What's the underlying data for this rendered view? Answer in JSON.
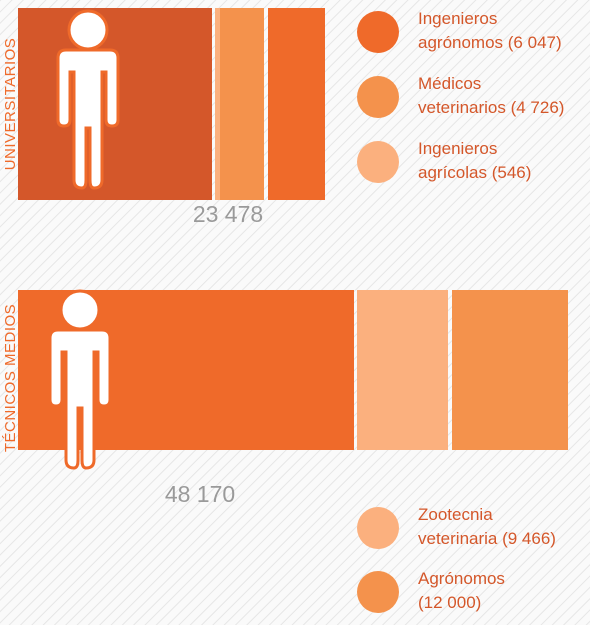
{
  "universitarios": {
    "label": "UNIVERSITARIOS",
    "total": "23 478",
    "legend": [
      [
        "Ingenieros",
        "agrónomos (6 047)"
      ],
      [
        "Médicos",
        "veterinarios (4 726)"
      ],
      [
        "Ingenieros",
        "agrícolas (546)"
      ]
    ]
  },
  "tecnicos": {
    "label": "TÉCNICOS MEDIOS",
    "total": "48 170",
    "legend": [
      [
        "Zootecnia",
        "veterinaria (9 466)"
      ],
      [
        "Agrónomos",
        "(12 000)"
      ]
    ]
  }
}
